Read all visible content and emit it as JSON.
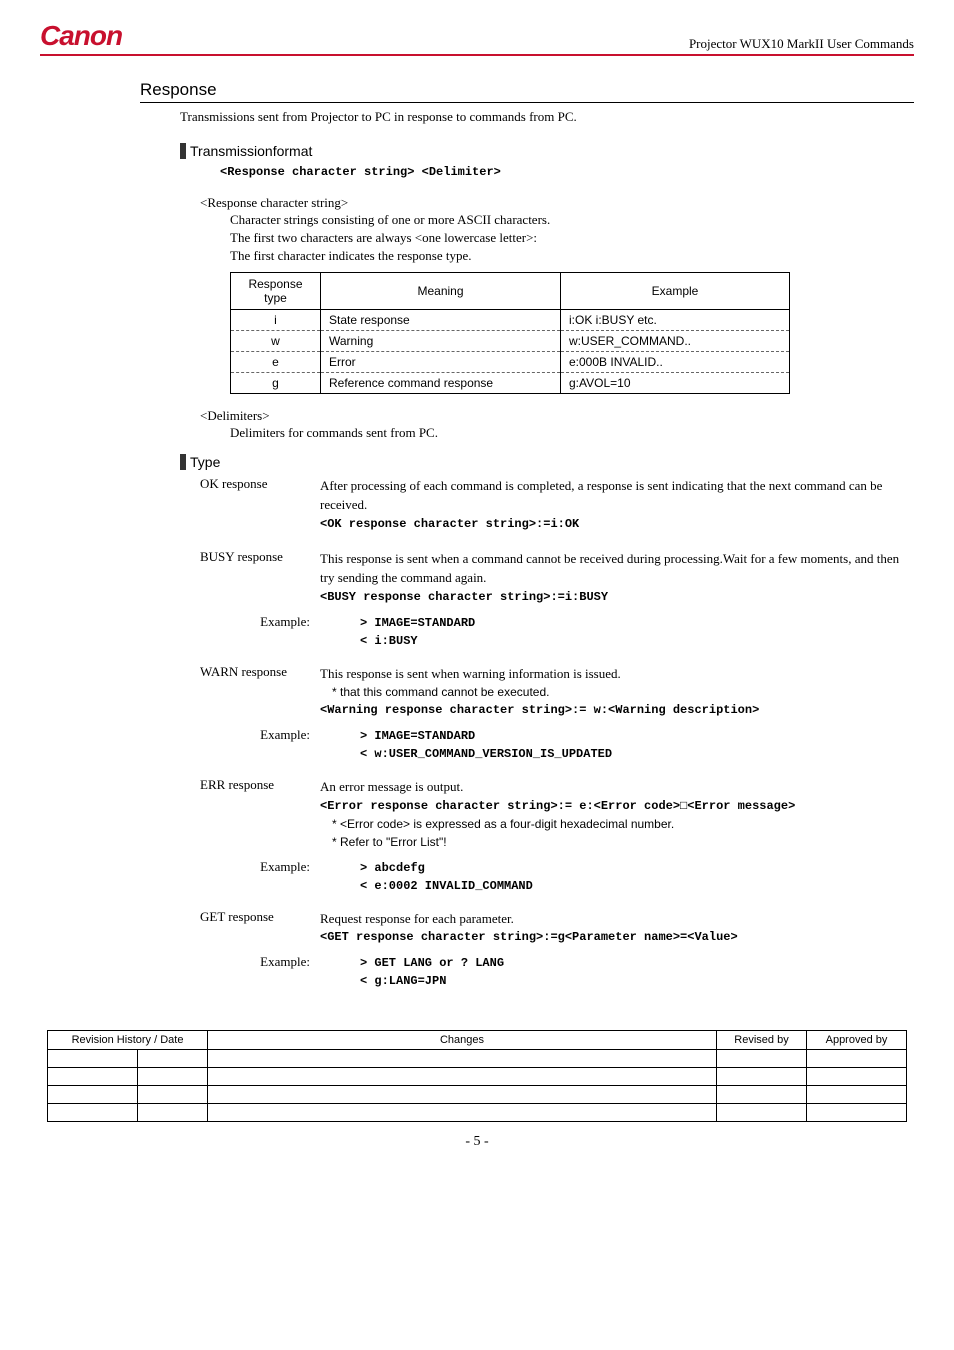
{
  "header": {
    "logo": "Canon",
    "title": "Projector WUX10 MarkII User Commands"
  },
  "section_title": "Response",
  "intro": "Transmissions sent from Projector to PC in response to commands from PC.",
  "transmission": {
    "heading": "Transmissionformat",
    "format": "<Response character string> <Delimiter>",
    "resp_label": "<Response character string>",
    "desc1": "Character strings consisting of one or more ASCII characters.",
    "desc2": "The first two characters are always <one lowercase letter>:",
    "desc3": "The first character indicates the response type.",
    "table": {
      "headers": [
        "Response type",
        "Meaning",
        "Example"
      ],
      "rows": [
        [
          "i",
          "State response",
          "i:OK   i:BUSY etc."
        ],
        [
          "w",
          "Warning",
          "w:USER_COMMAND.."
        ],
        [
          "e",
          "Error",
          "e:000B INVALID.."
        ],
        [
          "g",
          "Reference command response",
          "g:AVOL=10"
        ]
      ]
    },
    "delim_label": "<Delimiters>",
    "delim_desc": "Delimiters for commands sent from PC."
  },
  "type": {
    "heading": "Type",
    "ok": {
      "label": "OK response",
      "text": "After processing of each command is completed, a response is sent indicating that the next command can be received.",
      "format": "<OK response character string>:=i:OK"
    },
    "busy": {
      "label": "BUSY response",
      "text": "This response is sent when a command cannot be received during processing.Wait for a few moments, and then try sending the command again.",
      "format": "<BUSY response character string>:=i:BUSY",
      "example_label": "Example:",
      "ex1": "> IMAGE=STANDARD",
      "ex2": "< i:BUSY"
    },
    "warn": {
      "label": "WARN response",
      "text": "This response is sent when warning information is issued.",
      "note": "* that this command cannot be executed.",
      "format": "<Warning response character string>:= w:<Warning description>",
      "example_label": "Example:",
      "ex1": "> IMAGE=STANDARD",
      "ex2": "< w:USER_COMMAND_VERSION_IS_UPDATED"
    },
    "err": {
      "label": "ERR response",
      "text": "An error message is output.",
      "format": "<Error response character string>:= e:<Error code>□<Error message>",
      "note1": "* <Error code> is expressed as a four-digit hexadecimal number.",
      "note2": "* Refer to \"Error List\"!",
      "example_label": "Example:",
      "ex1": "> abcdefg",
      "ex2": "< e:0002 INVALID_COMMAND"
    },
    "get": {
      "label": "GET response",
      "text": "Request response for each parameter.",
      "format": "<GET response character string>:=g<Parameter name>=<Value>",
      "example_label": "Example:",
      "ex1": "> GET LANG or ? LANG",
      "ex2": "< g:LANG=JPN"
    }
  },
  "rev_table": {
    "headers": [
      "Revision History / Date",
      "Changes",
      "Revised by",
      "Approved by"
    ]
  },
  "page_number": "- 5 -"
}
